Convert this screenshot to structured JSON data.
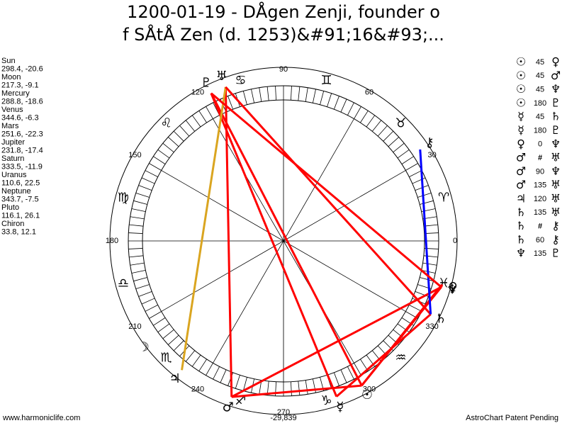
{
  "header": {
    "title_lines": [
      "1200-01-19 - DÅgen Zenji, founder o",
      "f SÅtÅ Zen (d. 1253)&#91;16&#93;..."
    ]
  },
  "planets": [
    {
      "name": "Sun",
      "position": "298.4, -20.6",
      "glyph": "☉"
    },
    {
      "name": "Moon",
      "position": "217.3, -9.1",
      "glyph": "☽"
    },
    {
      "name": "Mercury",
      "position": "288.8, -18.6",
      "glyph": "☿"
    },
    {
      "name": "Venus",
      "position": "344.6, -6.3",
      "glyph": "♀"
    },
    {
      "name": "Mars",
      "position": "251.6, -22.3",
      "glyph": "♂"
    },
    {
      "name": "Jupiter",
      "position": "231.8, -17.4",
      "glyph": "♃"
    },
    {
      "name": "Saturn",
      "position": "333.5, -11.9",
      "glyph": "♄"
    },
    {
      "name": "Uranus",
      "position": "110.6, 22.5",
      "glyph": "♅"
    },
    {
      "name": "Neptune",
      "position": "343.7, -7.5",
      "glyph": "♆"
    },
    {
      "name": "Pluto",
      "position": "116.1, 26.1",
      "glyph": "♇"
    },
    {
      "name": "Chiron",
      "position": "33.8, 12.1",
      "glyph": "⚷"
    }
  ],
  "signs": [
    "♈",
    "♉",
    "♊",
    "♋",
    "♌",
    "♍",
    "♎",
    "♏",
    "♐",
    "♑",
    "♒",
    "♓"
  ],
  "degree_labels": [
    0,
    30,
    60,
    90,
    120,
    150,
    180,
    210,
    240,
    270,
    300,
    330
  ],
  "aspects": [
    {
      "from": "☉",
      "aspect": "45",
      "to": "♀",
      "color": "#ff0000"
    },
    {
      "from": "☉",
      "aspect": "45",
      "to": "♂",
      "color": "#ff0000"
    },
    {
      "from": "☉",
      "aspect": "45",
      "to": "♆",
      "color": "#ff0000"
    },
    {
      "from": "☉",
      "aspect": "180",
      "to": "♇",
      "color": "#ff0000"
    },
    {
      "from": "☿",
      "aspect": "45",
      "to": "♄",
      "color": "#ff0000"
    },
    {
      "from": "☿",
      "aspect": "180",
      "to": "♇",
      "color": "#ff0000"
    },
    {
      "from": "♀",
      "aspect": "0",
      "to": "♆",
      "color": "#ff0000"
    },
    {
      "from": "♂",
      "aspect": "#",
      "to": "♅",
      "color": "#ff0000",
      "dotted": true
    },
    {
      "from": "♂",
      "aspect": "90",
      "to": "♆",
      "color": "#ff0000"
    },
    {
      "from": "♂",
      "aspect": "135",
      "to": "♅",
      "color": "#ff0000"
    },
    {
      "from": "♃",
      "aspect": "120",
      "to": "♅",
      "color": "#daa520"
    },
    {
      "from": "♄",
      "aspect": "135",
      "to": "♅",
      "color": "#ff0000"
    },
    {
      "from": "♄",
      "aspect": "#",
      "to": "⚷",
      "color": "#0000ff",
      "dotted": true
    },
    {
      "from": "♄",
      "aspect": "60",
      "to": "⚷",
      "color": "#0000ff"
    },
    {
      "from": "♆",
      "aspect": "135",
      "to": "♇",
      "color": "#ff0000"
    }
  ],
  "footer": {
    "left": "www.harmoniclife.com",
    "center": "-29,839",
    "right": "AstroChart Patent Pending"
  }
}
